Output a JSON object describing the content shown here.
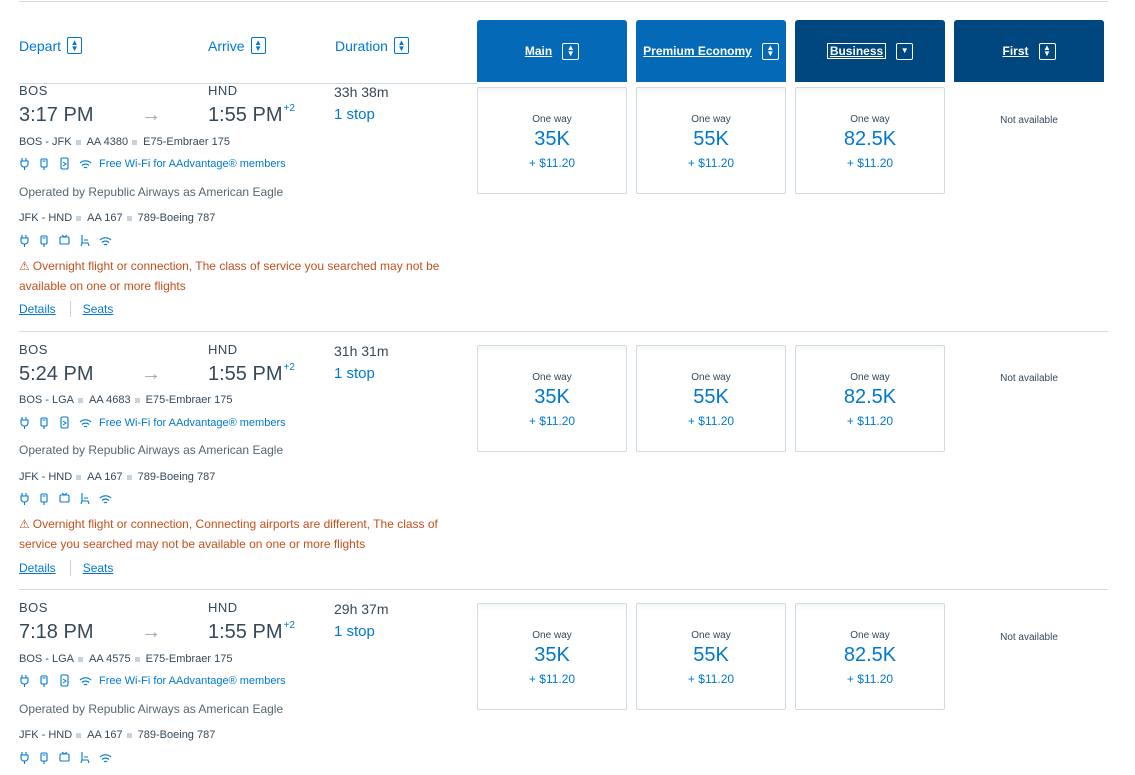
{
  "header": {
    "depart_label": "Depart",
    "arrive_label": "Arrive",
    "duration_label": "Duration",
    "cabins": [
      {
        "label": "Main",
        "icon": "sort-icon"
      },
      {
        "label": "Premium Economy",
        "icon": "sort-icon"
      },
      {
        "label": "Business",
        "icon": "sort-desc-icon"
      },
      {
        "label": "First",
        "icon": "sort-icon"
      }
    ]
  },
  "flights": [
    {
      "origin": "BOS",
      "dest": "HND",
      "depart_time": "3:17 PM",
      "arrive_time": "1:55 PM",
      "day_offset": "+2",
      "duration": "33h 38m",
      "stops": "1 stop",
      "seg1": {
        "route": "BOS - JFK",
        "flight": "AA 4380",
        "aircraft": "E75-Embraer 175"
      },
      "wifi_text": "Free Wi-Fi for AAdvantage® members",
      "operated": "Operated by Republic Airways as American Eagle",
      "seg2": {
        "route": "JFK - HND",
        "flight": "AA 167",
        "aircraft": "789-Boeing 787"
      },
      "warning": "Overnight flight or connection, The class of service you searched may not be available on one or more flights",
      "details": "Details",
      "seats": "Seats",
      "fares": [
        {
          "label": "One way",
          "miles": "35K",
          "tax": "+ $11.20"
        },
        {
          "label": "One way",
          "miles": "55K",
          "tax": "+ $11.20"
        },
        {
          "label": "One way",
          "miles": "82.5K",
          "tax": "+ $11.20"
        }
      ],
      "first": "Not available"
    },
    {
      "origin": "BOS",
      "dest": "HND",
      "depart_time": "5:24 PM",
      "arrive_time": "1:55 PM",
      "day_offset": "+2",
      "duration": "31h 31m",
      "stops": "1 stop",
      "seg1": {
        "route": "BOS - LGA",
        "flight": "AA 4683",
        "aircraft": "E75-Embraer 175"
      },
      "wifi_text": "Free Wi-Fi for AAdvantage® members",
      "operated": "Operated by Republic Airways as American Eagle",
      "seg2": {
        "route": "JFK - HND",
        "flight": "AA 167",
        "aircraft": "789-Boeing 787"
      },
      "warning": "Overnight flight or connection, Connecting airports are different, The class of service you searched may not be available on one or more flights",
      "details": "Details",
      "seats": "Seats",
      "fares": [
        {
          "label": "One way",
          "miles": "35K",
          "tax": "+ $11.20"
        },
        {
          "label": "One way",
          "miles": "55K",
          "tax": "+ $11.20"
        },
        {
          "label": "One way",
          "miles": "82.5K",
          "tax": "+ $11.20"
        }
      ],
      "first": "Not available"
    },
    {
      "origin": "BOS",
      "dest": "HND",
      "depart_time": "7:18 PM",
      "arrive_time": "1:55 PM",
      "day_offset": "+2",
      "duration": "29h 37m",
      "stops": "1 stop",
      "seg1": {
        "route": "BOS - LGA",
        "flight": "AA 4575",
        "aircraft": "E75-Embraer 175"
      },
      "wifi_text": "Free Wi-Fi for AAdvantage® members",
      "operated": "Operated by Republic Airways as American Eagle",
      "seg2": {
        "route": "JFK - HND",
        "flight": "AA 167",
        "aircraft": "789-Boeing 787"
      },
      "fares": [
        {
          "label": "One way",
          "miles": "35K",
          "tax": "+ $11.20"
        },
        {
          "label": "One way",
          "miles": "55K",
          "tax": "+ $11.20"
        },
        {
          "label": "One way",
          "miles": "82.5K",
          "tax": "+ $11.20"
        }
      ],
      "first": "Not available"
    }
  ],
  "colors": {
    "accent": "#0078d2",
    "tab_main": "#0469b6",
    "tab_dark": "#00467f",
    "warning": "#c4501c"
  }
}
